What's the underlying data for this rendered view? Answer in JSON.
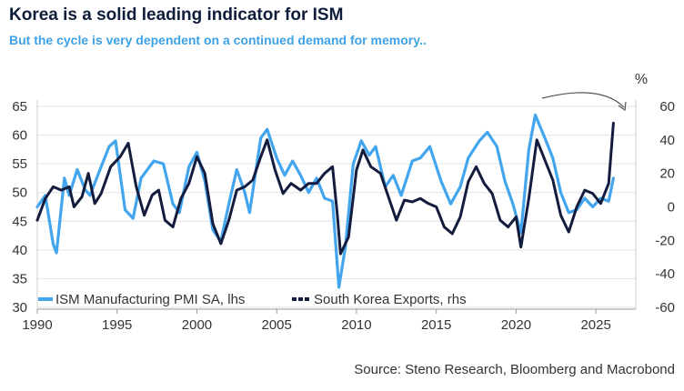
{
  "title": "Korea is a solid leading indicator for ISM",
  "subtitle": "But the cycle is very dependent on a continued demand for memory..",
  "source": "Source: Steno Research, Bloomberg and Macrobond",
  "colors": {
    "ism": "#42a5ee",
    "korea": "#141c3e",
    "arrow": "#444444"
  },
  "chart_data": {
    "type": "line",
    "title": "Korea is a solid leading indicator for ISM",
    "subtitle": "But the cycle is very dependent on a continued demand for memory..",
    "x_range": [
      1990,
      2027.5
    ],
    "x_ticks": [
      1990,
      1995,
      2000,
      2005,
      2010,
      2015,
      2020,
      2025
    ],
    "y_left": {
      "range": [
        30,
        65
      ],
      "ticks": [
        30,
        35,
        40,
        45,
        50,
        55,
        60,
        65
      ]
    },
    "y_right": {
      "range": [
        -60,
        60
      ],
      "ticks": [
        -60,
        -40,
        -20,
        0,
        20,
        40,
        60
      ],
      "unit_label": "%"
    },
    "grid": "horizontal",
    "legend_position": "bottom-left",
    "series": [
      {
        "name": "ISM Manufacturing PMI SA, lhs",
        "axis": "left",
        "points": [
          [
            1990.0,
            47.5
          ],
          [
            1990.5,
            49.5
          ],
          [
            1991.0,
            41.0
          ],
          [
            1991.2,
            39.5
          ],
          [
            1991.7,
            52.5
          ],
          [
            1992.0,
            49.5
          ],
          [
            1992.5,
            54.0
          ],
          [
            1993.0,
            50.5
          ],
          [
            1993.3,
            49.5
          ],
          [
            1994.0,
            54.5
          ],
          [
            1994.5,
            58.0
          ],
          [
            1994.9,
            59.0
          ],
          [
            1995.5,
            47.0
          ],
          [
            1996.0,
            45.5
          ],
          [
            1996.5,
            52.5
          ],
          [
            1997.3,
            55.5
          ],
          [
            1997.9,
            55.0
          ],
          [
            1998.5,
            48.0
          ],
          [
            1998.9,
            46.5
          ],
          [
            1999.5,
            54.5
          ],
          [
            2000.0,
            57.0
          ],
          [
            2000.5,
            52.0
          ],
          [
            2001.0,
            43.5
          ],
          [
            2001.5,
            41.5
          ],
          [
            2002.0,
            48.0
          ],
          [
            2002.5,
            54.0
          ],
          [
            2003.0,
            50.0
          ],
          [
            2003.3,
            46.5
          ],
          [
            2004.0,
            59.5
          ],
          [
            2004.4,
            61.0
          ],
          [
            2005.0,
            56.0
          ],
          [
            2005.5,
            53.0
          ],
          [
            2006.0,
            55.5
          ],
          [
            2006.5,
            53.0
          ],
          [
            2007.0,
            50.0
          ],
          [
            2007.5,
            52.5
          ],
          [
            2008.0,
            49.0
          ],
          [
            2008.5,
            48.5
          ],
          [
            2008.9,
            33.5
          ],
          [
            2009.3,
            40.5
          ],
          [
            2009.8,
            55.0
          ],
          [
            2010.3,
            59.0
          ],
          [
            2010.8,
            56.5
          ],
          [
            2011.2,
            58.0
          ],
          [
            2011.8,
            51.0
          ],
          [
            2012.3,
            53.0
          ],
          [
            2012.8,
            49.5
          ],
          [
            2013.5,
            55.5
          ],
          [
            2014.0,
            56.0
          ],
          [
            2014.6,
            58.0
          ],
          [
            2015.3,
            52.0
          ],
          [
            2015.9,
            48.0
          ],
          [
            2016.5,
            51.0
          ],
          [
            2017.0,
            56.0
          ],
          [
            2017.7,
            59.0
          ],
          [
            2018.2,
            60.5
          ],
          [
            2018.8,
            58.0
          ],
          [
            2019.3,
            52.0
          ],
          [
            2019.8,
            48.0
          ],
          [
            2020.3,
            43.0
          ],
          [
            2020.8,
            57.5
          ],
          [
            2021.2,
            63.5
          ],
          [
            2021.8,
            59.5
          ],
          [
            2022.3,
            56.0
          ],
          [
            2022.8,
            50.0
          ],
          [
            2023.3,
            46.5
          ],
          [
            2023.8,
            47.0
          ],
          [
            2024.3,
            49.0
          ],
          [
            2024.8,
            47.5
          ],
          [
            2025.3,
            49.0
          ],
          [
            2025.8,
            48.5
          ],
          [
            2026.1,
            52.5
          ]
        ]
      },
      {
        "name": "South Korea Exports, rhs",
        "axis": "right",
        "points": [
          [
            1990.0,
            -8.0
          ],
          [
            1990.5,
            5.0
          ],
          [
            1991.0,
            12.0
          ],
          [
            1991.5,
            10.0
          ],
          [
            1992.0,
            12.0
          ],
          [
            1992.3,
            0.0
          ],
          [
            1992.8,
            6.0
          ],
          [
            1993.2,
            20.0
          ],
          [
            1993.6,
            2.0
          ],
          [
            1994.0,
            8.0
          ],
          [
            1994.6,
            24.0
          ],
          [
            1995.2,
            30.0
          ],
          [
            1995.7,
            38.0
          ],
          [
            1996.2,
            12.0
          ],
          [
            1996.7,
            -5.0
          ],
          [
            1997.2,
            7.0
          ],
          [
            1997.6,
            10.0
          ],
          [
            1998.0,
            -8.0
          ],
          [
            1998.5,
            -12.0
          ],
          [
            1999.0,
            5.0
          ],
          [
            1999.5,
            14.0
          ],
          [
            2000.0,
            30.0
          ],
          [
            2000.5,
            20.0
          ],
          [
            2001.0,
            -10.0
          ],
          [
            2001.5,
            -22.0
          ],
          [
            2002.0,
            -8.0
          ],
          [
            2002.5,
            10.0
          ],
          [
            2003.0,
            12.0
          ],
          [
            2003.5,
            16.0
          ],
          [
            2004.0,
            30.0
          ],
          [
            2004.4,
            40.0
          ],
          [
            2004.9,
            22.0
          ],
          [
            2005.4,
            8.0
          ],
          [
            2005.9,
            14.0
          ],
          [
            2006.5,
            10.0
          ],
          [
            2007.0,
            14.0
          ],
          [
            2007.5,
            14.0
          ],
          [
            2008.0,
            20.0
          ],
          [
            2008.5,
            24.0
          ],
          [
            2008.8,
            -5.0
          ],
          [
            2009.0,
            -28.0
          ],
          [
            2009.5,
            -18.0
          ],
          [
            2010.0,
            22.0
          ],
          [
            2010.4,
            34.0
          ],
          [
            2010.9,
            24.0
          ],
          [
            2011.5,
            20.0
          ],
          [
            2012.0,
            6.0
          ],
          [
            2012.5,
            -8.0
          ],
          [
            2013.0,
            4.0
          ],
          [
            2013.5,
            3.0
          ],
          [
            2014.0,
            5.0
          ],
          [
            2014.5,
            2.0
          ],
          [
            2015.0,
            0.0
          ],
          [
            2015.5,
            -12.0
          ],
          [
            2016.0,
            -16.0
          ],
          [
            2016.5,
            -6.0
          ],
          [
            2017.0,
            15.0
          ],
          [
            2017.5,
            24.0
          ],
          [
            2018.0,
            14.0
          ],
          [
            2018.5,
            8.0
          ],
          [
            2019.0,
            -8.0
          ],
          [
            2019.5,
            -12.0
          ],
          [
            2020.0,
            -6.0
          ],
          [
            2020.3,
            -24.0
          ],
          [
            2020.8,
            5.0
          ],
          [
            2021.3,
            40.0
          ],
          [
            2021.8,
            28.0
          ],
          [
            2022.3,
            16.0
          ],
          [
            2022.8,
            -5.0
          ],
          [
            2023.3,
            -15.0
          ],
          [
            2023.8,
            0.0
          ],
          [
            2024.3,
            10.0
          ],
          [
            2024.8,
            8.0
          ],
          [
            2025.3,
            2.0
          ],
          [
            2025.8,
            14.0
          ],
          [
            2026.1,
            50.0
          ]
        ]
      }
    ]
  }
}
